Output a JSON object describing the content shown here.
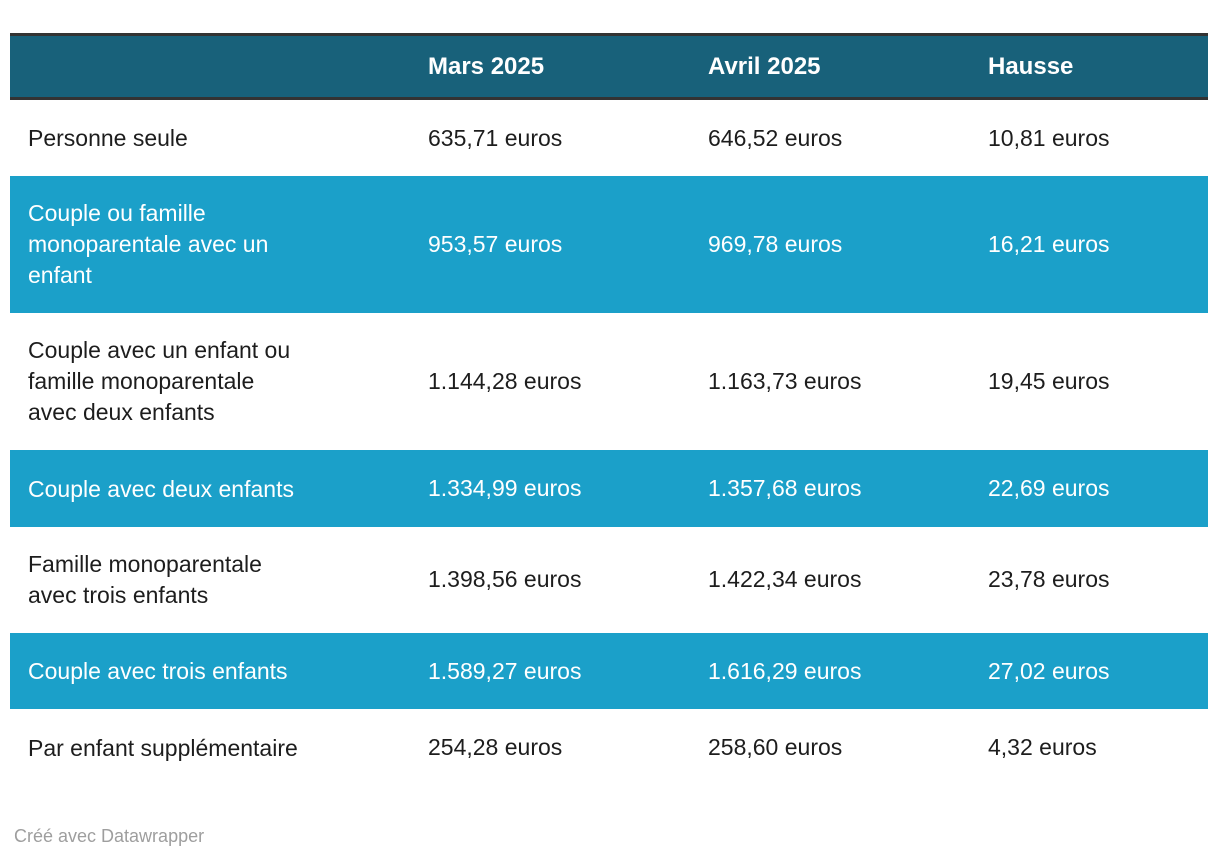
{
  "chart_data": {
    "type": "table",
    "columns": [
      "",
      "Mars 2025",
      "Avril 2025",
      "Hausse"
    ],
    "rows": [
      {
        "label": "Personne seule",
        "values": [
          "635,71 euros",
          "646,52 euros",
          "10,81 euros"
        ],
        "highlighted": false
      },
      {
        "label": "Couple ou famille monoparentale avec un enfant",
        "values": [
          "953,57 euros",
          "969,78 euros",
          "16,21 euros"
        ],
        "highlighted": true
      },
      {
        "label": "Couple avec un enfant ou famille monoparentale avec deux enfants",
        "values": [
          "1.144,28 euros",
          "1.163,73 euros",
          "19,45 euros"
        ],
        "highlighted": false
      },
      {
        "label": "Couple avec deux enfants",
        "values": [
          "1.334,99 euros",
          "1.357,68 euros",
          "22,69 euros"
        ],
        "highlighted": true
      },
      {
        "label": "Famille monoparentale avec trois enfants",
        "values": [
          "1.398,56 euros",
          "1.422,34 euros",
          "23,78 euros"
        ],
        "highlighted": false
      },
      {
        "label": "Couple avec trois enfants",
        "values": [
          "1.589,27 euros",
          "1.616,29 euros",
          "27,02 euros"
        ],
        "highlighted": true
      },
      {
        "label": "Par enfant supplémentaire",
        "values": [
          "254,28 euros",
          "258,60 euros",
          "4,32 euros"
        ],
        "highlighted": false
      }
    ]
  },
  "footer": {
    "credit": "Créé avec Datawrapper"
  },
  "colors": {
    "header_bg": "#18617A",
    "header_text": "#FFFFFF",
    "highlight_bg": "#1BA0C9",
    "highlight_text": "#FFFFFF",
    "body_text": "#1D1D1D",
    "border_dark": "#333333",
    "credit_text": "#9E9E9E",
    "page_bg": "#FFFFFF"
  }
}
